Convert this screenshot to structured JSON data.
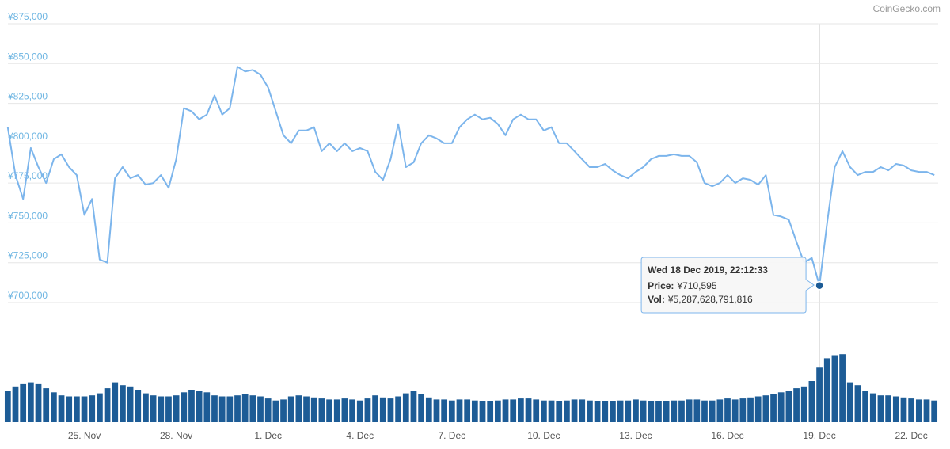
{
  "chart_data": {
    "type": "line",
    "credit": "CoinGecko.com",
    "color": "#7cb5ec",
    "categories": [
      null,
      null,
      null,
      null,
      null,
      null,
      null,
      null,
      null,
      null,
      "25. Nov",
      null,
      null,
      null,
      null,
      null,
      null,
      null,
      null,
      null,
      null,
      null,
      "28. Nov",
      null,
      null,
      null,
      null,
      null,
      null,
      null,
      null,
      null,
      null,
      null,
      "1. Dec",
      null,
      null,
      null,
      null,
      null,
      null,
      null,
      null,
      null,
      null,
      null,
      "4. Dec",
      null,
      null,
      null,
      null,
      null,
      null,
      null,
      null,
      null,
      null,
      null,
      "7. Dec",
      null,
      null,
      null,
      null,
      null,
      null,
      null,
      null,
      null,
      null,
      null,
      "10. Dec",
      null,
      null,
      null,
      null,
      null,
      null,
      null,
      null,
      null,
      null,
      null,
      "13. Dec",
      null,
      null,
      null,
      null,
      null,
      null,
      null,
      null,
      null,
      null,
      null,
      "16. Dec",
      null,
      null,
      null,
      null,
      null,
      null,
      null,
      null,
      null,
      null,
      null,
      "19. Dec",
      null,
      null,
      null,
      null,
      null,
      null,
      null,
      null,
      null,
      null,
      null,
      "22. Dec",
      null,
      null,
      null
    ],
    "values": [
      810000,
      780000,
      765000,
      797000,
      785000,
      775000,
      790000,
      793000,
      785000,
      780000,
      755000,
      765000,
      727000,
      725000,
      778000,
      785000,
      778000,
      780000,
      774000,
      775000,
      780000,
      772000,
      790000,
      822000,
      820000,
      815000,
      818000,
      830000,
      818000,
      822000,
      848000,
      845000,
      846000,
      843000,
      835000,
      820000,
      805000,
      800000,
      808000,
      808000,
      810000,
      795000,
      800000,
      795000,
      800000,
      795000,
      797000,
      795000,
      782000,
      777000,
      790000,
      812000,
      785000,
      788000,
      800000,
      805000,
      803000,
      800000,
      800000,
      810000,
      815000,
      818000,
      815000,
      816000,
      812000,
      805000,
      815000,
      818000,
      815000,
      815000,
      808000,
      810000,
      800000,
      800000,
      795000,
      790000,
      785000,
      785000,
      787000,
      783000,
      780000,
      778000,
      782000,
      785000,
      790000,
      792000,
      792000,
      793000,
      792000,
      792000,
      788000,
      775000,
      773000,
      775000,
      780000,
      775000,
      778000,
      777000,
      774000,
      780000,
      755000,
      754000,
      752000,
      738000,
      725000,
      728000,
      710595,
      750000,
      785000,
      795000,
      785000,
      780000,
      782000,
      782000,
      785000,
      783000,
      787000,
      786000,
      783000,
      782000,
      782000,
      780000
    ],
    "ylim": [
      700000,
      875000
    ],
    "yticks": [
      {
        "value": 700000,
        "label": "¥700,000"
      },
      {
        "value": 725000,
        "label": "¥725,000"
      },
      {
        "value": 750000,
        "label": "¥750,000"
      },
      {
        "value": 775000,
        "label": "¥775,000"
      },
      {
        "value": 800000,
        "label": "¥800,000"
      },
      {
        "value": 825000,
        "label": "¥825,000"
      },
      {
        "value": 850000,
        "label": "¥850,000"
      },
      {
        "value": 875000,
        "label": "¥875,000"
      }
    ],
    "grid": true,
    "volume": {
      "type": "bar",
      "color": "#1d5c96",
      "ylim": [
        0,
        10000000000000.0
      ],
      "values": [
        3000000000000.0,
        3400000000000.0,
        3700000000000.0,
        3800000000000.0,
        3700000000000.0,
        3300000000000.0,
        2900000000000.0,
        2600000000000.0,
        2500000000000.0,
        2500000000000.0,
        2500000000000.0,
        2600000000000.0,
        2800000000000.0,
        3300000000000.0,
        3800000000000.0,
        3600000000000.0,
        3400000000000.0,
        3100000000000.0,
        2800000000000.0,
        2600000000000.0,
        2500000000000.0,
        2500000000000.0,
        2600000000000.0,
        2900000000000.0,
        3100000000000.0,
        3000000000000.0,
        2900000000000.0,
        2600000000000.0,
        2500000000000.0,
        2500000000000.0,
        2600000000000.0,
        2700000000000.0,
        2600000000000.0,
        2500000000000.0,
        2300000000000.0,
        2100000000000.0,
        2200000000000.0,
        2500000000000.0,
        2600000000000.0,
        2500000000000.0,
        2400000000000.0,
        2300000000000.0,
        2200000000000.0,
        2200000000000.0,
        2300000000000.0,
        2200000000000.0,
        2100000000000.0,
        2300000000000.0,
        2600000000000.0,
        2400000000000.0,
        2300000000000.0,
        2500000000000.0,
        2800000000000.0,
        3000000000000.0,
        2700000000000.0,
        2400000000000.0,
        2200000000000.0,
        2200000000000.0,
        2100000000000.0,
        2200000000000.0,
        2200000000000.0,
        2100000000000.0,
        2000000000000.0,
        2000000000000.0,
        2100000000000.0,
        2200000000000.0,
        2200000000000.0,
        2300000000000.0,
        2300000000000.0,
        2200000000000.0,
        2100000000000.0,
        2100000000000.0,
        2000000000000.0,
        2100000000000.0,
        2200000000000.0,
        2200000000000.0,
        2100000000000.0,
        2000000000000.0,
        2000000000000.0,
        2000000000000.0,
        2100000000000.0,
        2100000000000.0,
        2200000000000.0,
        2100000000000.0,
        2000000000000.0,
        2000000000000.0,
        2000000000000.0,
        2100000000000.0,
        2100000000000.0,
        2200000000000.0,
        2200000000000.0,
        2100000000000.0,
        2100000000000.0,
        2200000000000.0,
        2300000000000.0,
        2200000000000.0,
        2300000000000.0,
        2400000000000.0,
        2500000000000.0,
        2600000000000.0,
        2700000000000.0,
        2900000000000.0,
        3000000000000.0,
        3300000000000.0,
        3400000000000.0,
        4000000000000.0,
        5287628791816,
        6200000000000.0,
        6500000000000.0,
        6600000000000.0,
        3800000000000.0,
        3600000000000.0,
        3000000000000.0,
        2800000000000.0,
        2600000000000.0,
        2600000000000.0,
        2500000000000.0,
        2400000000000.0,
        2300000000000.0,
        2200000000000.0,
        2200000000000.0,
        2100000000000.0
      ]
    },
    "tooltip": {
      "title": "Wed 18 Dec 2019, 22:12:33",
      "price_label": "Price:",
      "price": "¥710,595",
      "vol_label": "Vol:",
      "vol": "¥5,287,628,791,816"
    }
  }
}
